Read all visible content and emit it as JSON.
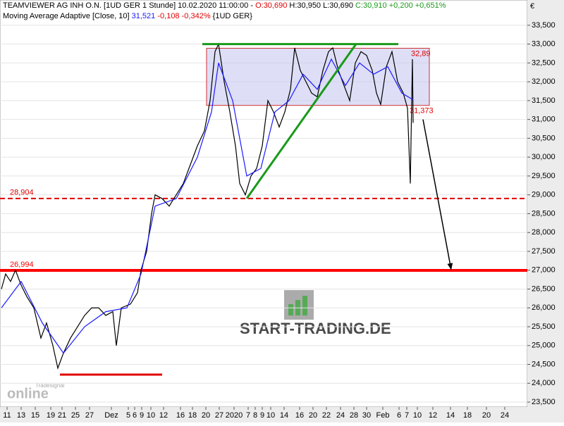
{
  "header": {
    "title": "TEAMVIEWER AG  INH O.N. [1UD GER  1 Stunde] 10.02.2020 11:00:00 -",
    "open": "O:30,690",
    "high": "H:30,950",
    "low": "L:30,690",
    "close": "C:30,910",
    "change": "+0,200",
    "change_pct": "+0,651%"
  },
  "indicator": {
    "name": "Moving Average Adaptive [Close, 10]",
    "value": "31,521",
    "change": "-0,108",
    "change_pct": "-0,342%",
    "symbol": "{1UD GER}"
  },
  "watermark": {
    "brand": "START-TRADING.DE",
    "vendor": "Tradesignal",
    "vendor_logo": "online"
  },
  "chart_data": {
    "type": "line",
    "currency": "€",
    "grid": true,
    "xlim": [
      0,
      149.6
    ],
    "ylim": [
      23370,
      34170
    ],
    "yticks": [
      {
        "value": 23500,
        "label": "23,500"
      },
      {
        "value": 24000,
        "label": "24,000"
      },
      {
        "value": 24500,
        "label": "24,500"
      },
      {
        "value": 25000,
        "label": "25,000"
      },
      {
        "value": 25500,
        "label": "25,500"
      },
      {
        "value": 26000,
        "label": "26,000"
      },
      {
        "value": 26500,
        "label": "26,500"
      },
      {
        "value": 27000,
        "label": "27,000"
      },
      {
        "value": 27500,
        "label": "27,500"
      },
      {
        "value": 28000,
        "label": "28,000"
      },
      {
        "value": 28500,
        "label": "28,500"
      },
      {
        "value": 29000,
        "label": "29,000"
      },
      {
        "value": 29500,
        "label": "29,500"
      },
      {
        "value": 30000,
        "label": "30,000"
      },
      {
        "value": 30500,
        "label": "30,500"
      },
      {
        "value": 31000,
        "label": "31,000"
      },
      {
        "value": 31500,
        "label": "31,500"
      },
      {
        "value": 32000,
        "label": "32,000"
      },
      {
        "value": 32500,
        "label": "32,500"
      },
      {
        "value": 33000,
        "label": "33,000"
      },
      {
        "value": 33500,
        "label": "33,500"
      }
    ],
    "xticks": [
      {
        "value": 2,
        "label": "11"
      },
      {
        "value": 6,
        "label": "13"
      },
      {
        "value": 10,
        "label": "15"
      },
      {
        "value": 14.4,
        "label": "19"
      },
      {
        "value": 17.6,
        "label": "21"
      },
      {
        "value": 21.4,
        "label": "25"
      },
      {
        "value": 25.4,
        "label": "27"
      },
      {
        "value": 31.6,
        "label": "Dez"
      },
      {
        "value": 36.4,
        "label": "5"
      },
      {
        "value": 38.2,
        "label": "6"
      },
      {
        "value": 40.2,
        "label": "9"
      },
      {
        "value": 42.8,
        "label": "10"
      },
      {
        "value": 46.4,
        "label": "12"
      },
      {
        "value": 51.2,
        "label": "16"
      },
      {
        "value": 54.6,
        "label": "18"
      },
      {
        "value": 58.4,
        "label": "20"
      },
      {
        "value": 62.2,
        "label": "27"
      },
      {
        "value": 66.4,
        "label": "2020"
      },
      {
        "value": 70.4,
        "label": "7"
      },
      {
        "value": 72.4,
        "label": "8"
      },
      {
        "value": 74.4,
        "label": "9"
      },
      {
        "value": 76.8,
        "label": "10"
      },
      {
        "value": 80.6,
        "label": "14"
      },
      {
        "value": 85,
        "label": "16"
      },
      {
        "value": 88.8,
        "label": "20"
      },
      {
        "value": 92.6,
        "label": "22"
      },
      {
        "value": 96.6,
        "label": "24"
      },
      {
        "value": 100.4,
        "label": "28"
      },
      {
        "value": 104,
        "label": "30"
      },
      {
        "value": 108.6,
        "label": "Feb"
      },
      {
        "value": 113.2,
        "label": "6"
      },
      {
        "value": 115.4,
        "label": "7"
      },
      {
        "value": 118.4,
        "label": "10"
      },
      {
        "value": 122.8,
        "label": "12"
      },
      {
        "value": 127.8,
        "label": "14"
      },
      {
        "value": 132.6,
        "label": "18"
      },
      {
        "value": 138,
        "label": "20"
      },
      {
        "value": 143.2,
        "label": "24"
      }
    ],
    "series": [
      {
        "color": "#000000",
        "x": [
          0.4,
          1.6,
          3,
          4.4,
          6,
          7.6,
          9.6,
          11.6,
          13.2,
          15,
          16.4,
          18,
          20,
          22,
          24,
          26,
          28,
          30,
          32,
          33,
          34.4,
          37,
          39,
          40,
          41.6,
          43,
          44,
          46,
          48,
          50,
          52,
          54,
          56,
          58,
          59.6,
          61,
          62,
          63.6,
          65.2,
          66.8,
          68,
          69.6,
          71.2,
          72.8,
          74.4,
          76,
          77.6,
          79.2,
          80.8,
          82.4,
          83.6,
          85.2,
          86.8,
          88.4,
          90,
          91.6,
          93.2,
          94.4,
          96,
          97.6,
          99.2,
          100.8,
          102.4,
          104,
          105.6,
          106.8,
          108,
          109.6,
          111.2,
          112.8,
          114.4,
          115.6,
          116.4,
          117,
          117.2
        ],
        "values": [
          26500,
          26900,
          26700,
          27000,
          26600,
          26300,
          26000,
          25200,
          25600,
          25000,
          24400,
          24800,
          25200,
          25500,
          25800,
          26000,
          26000,
          25800,
          25900,
          25000,
          26000,
          26100,
          26400,
          27000,
          27500,
          28500,
          29000,
          28900,
          28700,
          29000,
          29300,
          29800,
          30300,
          30700,
          31500,
          32800,
          33000,
          32000,
          31200,
          30300,
          29300,
          29000,
          29500,
          29700,
          30300,
          31500,
          31200,
          30800,
          31200,
          31800,
          32900,
          32300,
          32000,
          31700,
          31600,
          32300,
          32800,
          32900,
          32300,
          31900,
          31500,
          32500,
          32800,
          32700,
          32300,
          31700,
          31400,
          32400,
          32800,
          32000,
          31700,
          31300,
          29300,
          32600,
          30910
        ]
      },
      {
        "color": "#1a1aff",
        "x": [
          0.4,
          6,
          12,
          18,
          24,
          30,
          36,
          40,
          44,
          50,
          56,
          60,
          62,
          66,
          70,
          74,
          78,
          82,
          86,
          90,
          94,
          98,
          102,
          106,
          110,
          114,
          117.2
        ],
        "values": [
          26000,
          26700,
          25600,
          24800,
          25500,
          25900,
          26000,
          26900,
          28700,
          28900,
          30000,
          31200,
          32500,
          31500,
          29500,
          29700,
          31200,
          31500,
          32200,
          31800,
          32600,
          31900,
          32500,
          32200,
          32400,
          31700,
          31521
        ]
      }
    ],
    "levels": [
      {
        "value": {
          "value": 28904,
          "label": "28,904"
        },
        "color": "#e00000",
        "style": "dashed"
      },
      {
        "value": {
          "value": 26994,
          "label": "26,994"
        },
        "color": "#ff0000",
        "style": "thick"
      }
    ],
    "range_box": {
      "x": [
        58.6,
        121.8
      ],
      "ymin": {
        "value": 31373,
        "label": "31,373"
      },
      "ymax": {
        "value": 32890,
        "label": "32,89"
      },
      "color": "#c8c8f0"
    },
    "trendlines": [
      {
        "x": [
          57.4,
          113
        ],
        "y": [
          33000,
          33000
        ],
        "color": "#1a9a1a"
      },
      {
        "x": [
          70,
          101
        ],
        "y": [
          28904,
          33000
        ],
        "color": "#1a9a1a"
      },
      {
        "x": [
          17,
          46
        ],
        "y": [
          24230,
          24230
        ],
        "color": "#e00000"
      }
    ],
    "arrow": {
      "x": [
        120,
        128
      ],
      "y": [
        31000,
        27010
      ],
      "color": "#000000"
    }
  }
}
